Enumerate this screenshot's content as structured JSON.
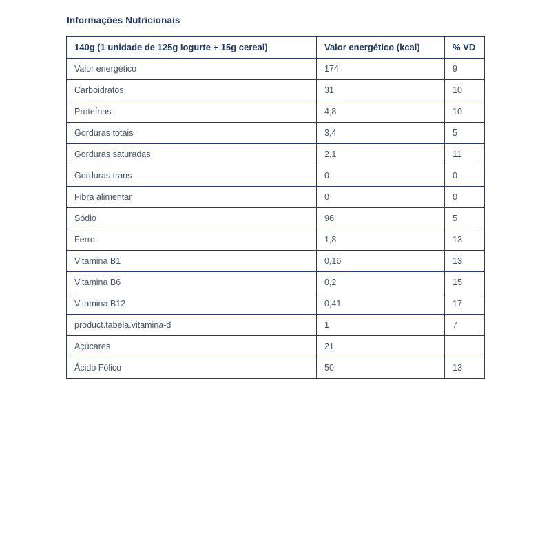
{
  "page": {
    "title": "Informações Nutricionais"
  },
  "table": {
    "headers": [
      "140g (1 unidade de 125g Iogurte + 15g cereal)",
      "Valor energético (kcal)",
      "% VD"
    ],
    "rows": [
      {
        "label": "Valor energético",
        "value": "174",
        "vd": "9"
      },
      {
        "label": "Carboidratos",
        "value": "31",
        "vd": "10"
      },
      {
        "label": "Proteínas",
        "value": "4,8",
        "vd": "10"
      },
      {
        "label": "Gorduras totais",
        "value": "3,4",
        "vd": "5"
      },
      {
        "label": "Gorduras saturadas",
        "value": "2,1",
        "vd": "11"
      },
      {
        "label": "Gorduras trans",
        "value": "0",
        "vd": "0"
      },
      {
        "label": "Fibra alimentar",
        "value": "0",
        "vd": "0"
      },
      {
        "label": "Sódio",
        "value": "96",
        "vd": "5"
      },
      {
        "label": "Ferro",
        "value": "1,8",
        "vd": "13"
      },
      {
        "label": "Vitamina B1",
        "value": "0,16",
        "vd": "13"
      },
      {
        "label": "Vitamina B6",
        "value": "0,2",
        "vd": "15"
      },
      {
        "label": "Vitamina B12",
        "value": "0,41",
        "vd": "17"
      },
      {
        "label": "product.tabela.vitamina-d",
        "value": "1",
        "vd": "7"
      },
      {
        "label": "Açúcares",
        "value": "21",
        "vd": ""
      },
      {
        "label": "Ácido Fólico",
        "value": "50",
        "vd": "13"
      }
    ]
  },
  "colors": {
    "heading_text": "#1f3864",
    "cell_text": "#44546a",
    "border": "#2b3a67",
    "background": "#ffffff"
  }
}
